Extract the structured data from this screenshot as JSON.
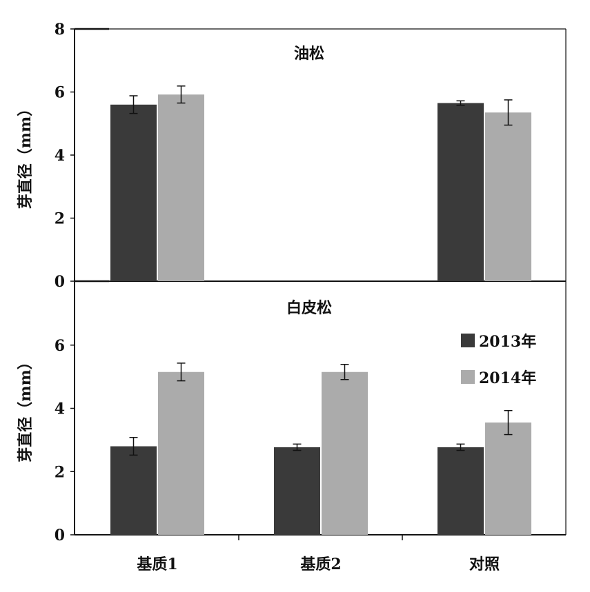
{
  "chart_data": [
    {
      "type": "bar",
      "title": "油松",
      "ylabel": "芽直径（mm）",
      "xlabel": "",
      "ylim": [
        0,
        8
      ],
      "yticks": [
        "0",
        "2",
        "4",
        "6",
        "8"
      ],
      "categories": [
        "基质1",
        "基质2",
        "对照"
      ],
      "series": [
        {
          "name": "2013年",
          "color": "#3a3a3a",
          "values": [
            5.6,
            null,
            5.65
          ],
          "errors": [
            0.28,
            null,
            0.07
          ]
        },
        {
          "name": "2014年",
          "color": "#ababab",
          "values": [
            5.92,
            null,
            5.35
          ],
          "errors": [
            0.27,
            null,
            0.4
          ]
        }
      ]
    },
    {
      "type": "bar",
      "title": "白皮松",
      "ylabel": "芽直径（mm）",
      "xlabel": "",
      "ylim": [
        0,
        8
      ],
      "yticks": [
        "0",
        "2",
        "4",
        "6"
      ],
      "categories": [
        "基质1",
        "基质2",
        "对照"
      ],
      "legend": {
        "placement": "top-right"
      },
      "series": [
        {
          "name": "2013年",
          "color": "#3a3a3a",
          "values": [
            2.8,
            2.77,
            2.77
          ],
          "errors": [
            0.28,
            0.1,
            0.1
          ]
        },
        {
          "name": "2014年",
          "color": "#ababab",
          "values": [
            5.15,
            5.15,
            3.55
          ],
          "errors": [
            0.28,
            0.24,
            0.38
          ]
        }
      ]
    }
  ]
}
